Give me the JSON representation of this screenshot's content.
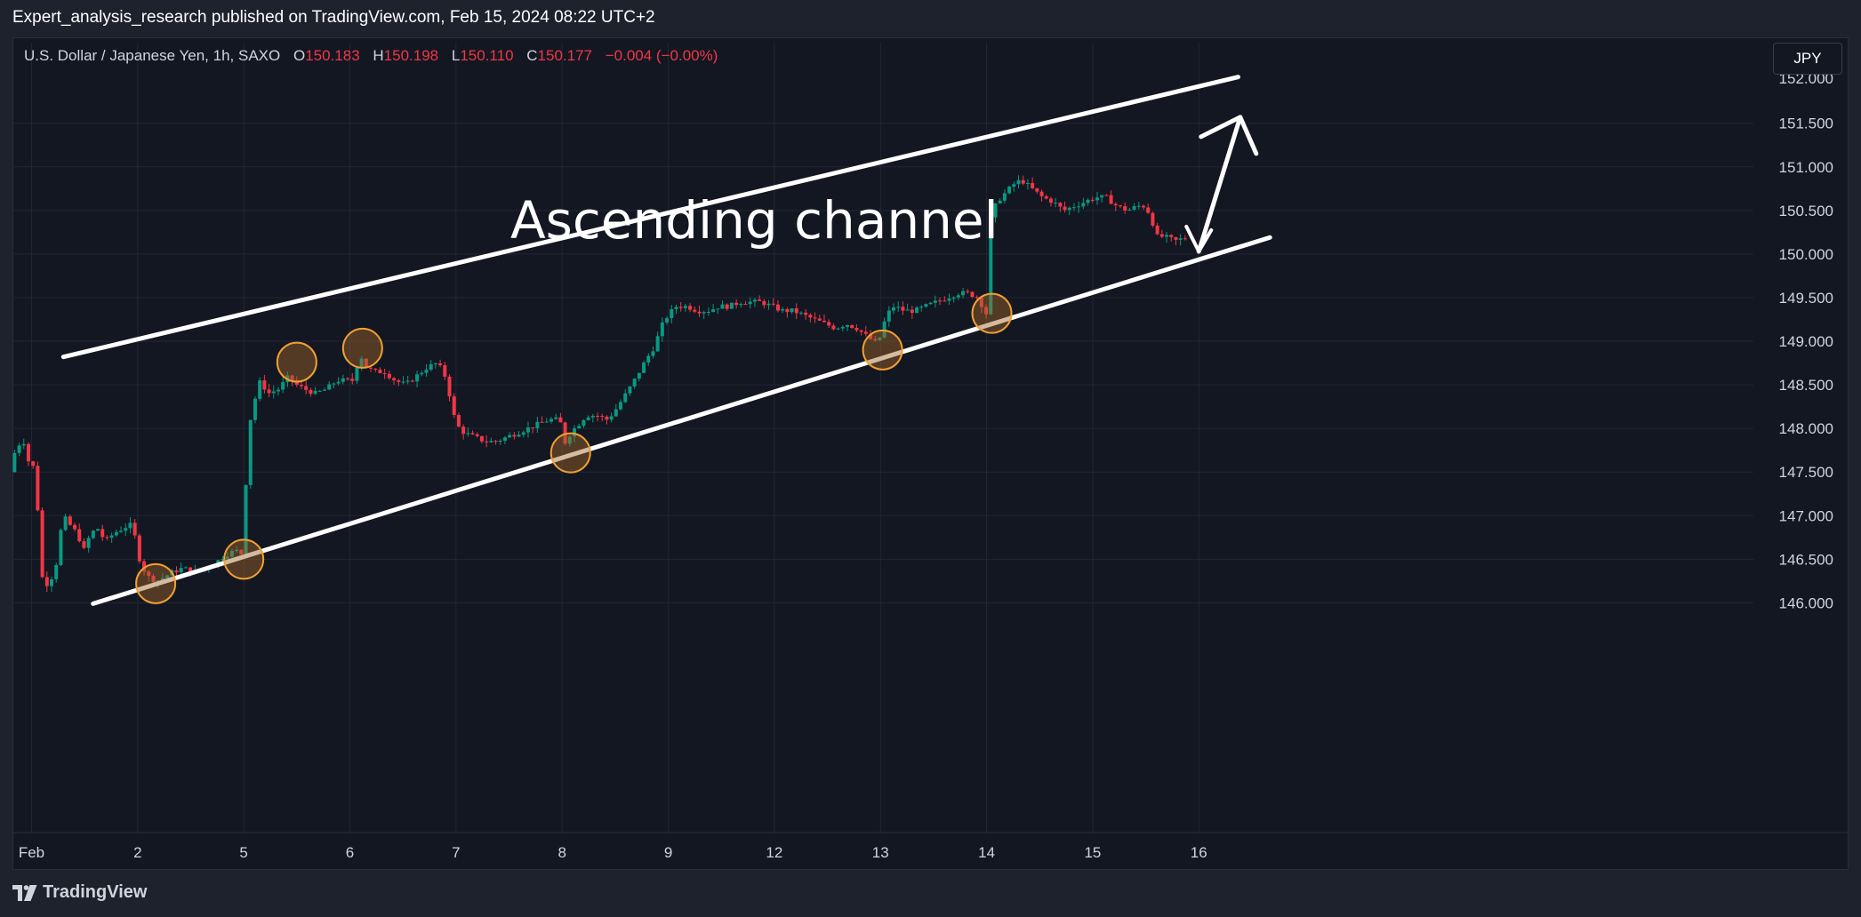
{
  "header": {
    "publish_line": "Expert_analysis_research published on TradingView.com, Feb 15, 2024 08:22 UTC+2"
  },
  "symbol": {
    "title": "U.S. Dollar / Japanese Yen, 1h, SAXO",
    "open_label": "O",
    "open": "150.183",
    "high_label": "H",
    "high": "150.198",
    "low_label": "L",
    "low": "150.110",
    "close_label": "C",
    "close": "150.177",
    "change": "−0.004 (−0.00%)"
  },
  "currency_button": "JPY",
  "footer": {
    "brand": "TradingView"
  },
  "colors": {
    "background": "#131722",
    "frame": "#1e222d",
    "grid": "#232632",
    "up": "#089981",
    "down": "#f23645",
    "annotation": "#ffffff",
    "highlight_fill": "#a0662a",
    "highlight_stroke": "#f0a030"
  },
  "chart_data": {
    "type": "candlestick",
    "title": "U.S. Dollar / Japanese Yen, 1h, SAXO",
    "annotation": "Ascending channel",
    "x_ticks": [
      "Feb",
      "2",
      "5",
      "6",
      "7",
      "8",
      "9",
      "12",
      "13",
      "14",
      "15",
      "16"
    ],
    "y_ticks": [
      "146.000",
      "146.500",
      "147.000",
      "147.500",
      "148.000",
      "148.500",
      "149.000",
      "149.500",
      "150.000",
      "150.500",
      "151.000",
      "151.500"
    ],
    "y_top_partial": "152.000",
    "ylim": [
      145.78,
      152.2
    ],
    "x_unit": "trading-day index (Feb 1 = 0)",
    "xlim": [
      -0.6,
      11.6
    ],
    "grid": true,
    "channel_upper": [
      [
        -0.12,
        148.82
      ],
      [
        10.95,
        152.03
      ]
    ],
    "channel_lower": [
      [
        0.16,
        145.99
      ],
      [
        11.25,
        150.19
      ]
    ],
    "projection_arrow": [
      [
        10.58,
        150.03
      ],
      [
        10.97,
        151.57
      ]
    ],
    "highlighted_points": [
      {
        "x": 0.75,
        "y": 146.22
      },
      {
        "x": 1.58,
        "y": 146.5
      },
      {
        "x": 2.08,
        "y": 148.76
      },
      {
        "x": 2.7,
        "y": 148.92
      },
      {
        "x": 4.66,
        "y": 147.72
      },
      {
        "x": 7.6,
        "y": 148.9
      },
      {
        "x": 8.63,
        "y": 149.32
      }
    ],
    "price_path": [
      [
        -0.58,
        147.5
      ],
      [
        -0.52,
        147.8
      ],
      [
        -0.45,
        147.85
      ],
      [
        -0.4,
        147.6
      ],
      [
        -0.35,
        147.55
      ],
      [
        -0.3,
        146.8
      ],
      [
        -0.28,
        146.3
      ],
      [
        -0.22,
        146.2
      ],
      [
        -0.15,
        146.4
      ],
      [
        -0.08,
        147.0
      ],
      [
        -0.02,
        146.9
      ],
      [
        0.05,
        146.8
      ],
      [
        0.12,
        146.6
      ],
      [
        0.18,
        146.8
      ],
      [
        0.25,
        146.85
      ],
      [
        0.32,
        146.7
      ],
      [
        0.4,
        146.8
      ],
      [
        0.48,
        146.85
      ],
      [
        0.55,
        146.9
      ],
      [
        0.6,
        146.75
      ],
      [
        0.65,
        146.45
      ],
      [
        0.72,
        146.3
      ],
      [
        0.8,
        146.25
      ],
      [
        0.88,
        146.3
      ],
      [
        0.95,
        146.35
      ],
      [
        1.05,
        146.4
      ],
      [
        1.15,
        146.35
      ],
      [
        1.25,
        146.4
      ],
      [
        1.35,
        146.45
      ],
      [
        1.45,
        146.55
      ],
      [
        1.55,
        146.6
      ],
      [
        1.62,
        146.55
      ],
      [
        1.66,
        147.95
      ],
      [
        1.72,
        148.3
      ],
      [
        1.78,
        148.55
      ],
      [
        1.85,
        148.4
      ],
      [
        1.95,
        148.45
      ],
      [
        2.05,
        148.6
      ],
      [
        2.12,
        148.5
      ],
      [
        2.2,
        148.45
      ],
      [
        2.3,
        148.4
      ],
      [
        2.4,
        148.45
      ],
      [
        2.5,
        148.55
      ],
      [
        2.6,
        148.55
      ],
      [
        2.65,
        148.55
      ],
      [
        2.72,
        148.85
      ],
      [
        2.78,
        148.7
      ],
      [
        2.85,
        148.65
      ],
      [
        2.95,
        148.65
      ],
      [
        3.05,
        148.55
      ],
      [
        3.15,
        148.5
      ],
      [
        3.25,
        148.6
      ],
      [
        3.35,
        148.7
      ],
      [
        3.45,
        148.75
      ],
      [
        3.52,
        148.6
      ],
      [
        3.58,
        148.3
      ],
      [
        3.62,
        148.05
      ],
      [
        3.7,
        147.95
      ],
      [
        3.8,
        147.9
      ],
      [
        3.9,
        147.85
      ],
      [
        4.0,
        147.85
      ],
      [
        4.1,
        147.9
      ],
      [
        4.2,
        147.95
      ],
      [
        4.3,
        148.0
      ],
      [
        4.4,
        148.05
      ],
      [
        4.5,
        148.1
      ],
      [
        4.6,
        148.1
      ],
      [
        4.66,
        147.8
      ],
      [
        4.7,
        147.95
      ],
      [
        4.78,
        148.05
      ],
      [
        4.85,
        148.15
      ],
      [
        4.95,
        148.15
      ],
      [
        5.05,
        148.1
      ],
      [
        5.12,
        148.2
      ],
      [
        5.2,
        148.35
      ],
      [
        5.28,
        148.5
      ],
      [
        5.35,
        148.65
      ],
      [
        5.42,
        148.8
      ],
      [
        5.5,
        148.95
      ],
      [
        5.55,
        149.15
      ],
      [
        5.62,
        149.3
      ],
      [
        5.7,
        149.4
      ],
      [
        5.8,
        149.4
      ],
      [
        5.9,
        149.35
      ],
      [
        6.0,
        149.35
      ],
      [
        6.1,
        149.4
      ],
      [
        6.2,
        149.4
      ],
      [
        6.3,
        149.45
      ],
      [
        6.4,
        149.45
      ],
      [
        6.5,
        149.45
      ],
      [
        6.6,
        149.4
      ],
      [
        6.7,
        149.35
      ],
      [
        6.8,
        149.35
      ],
      [
        6.9,
        149.3
      ],
      [
        7.0,
        149.25
      ],
      [
        7.1,
        149.2
      ],
      [
        7.2,
        149.15
      ],
      [
        7.3,
        149.2
      ],
      [
        7.4,
        149.15
      ],
      [
        7.5,
        149.05
      ],
      [
        7.58,
        148.98
      ],
      [
        7.62,
        149.05
      ],
      [
        7.68,
        149.3
      ],
      [
        7.75,
        149.4
      ],
      [
        7.85,
        149.35
      ],
      [
        7.95,
        149.35
      ],
      [
        8.05,
        149.4
      ],
      [
        8.15,
        149.45
      ],
      [
        8.25,
        149.5
      ],
      [
        8.35,
        149.55
      ],
      [
        8.45,
        149.55
      ],
      [
        8.55,
        149.5
      ],
      [
        8.6,
        149.35
      ],
      [
        8.63,
        149.3
      ],
      [
        8.65,
        150.35
      ],
      [
        8.72,
        150.6
      ],
      [
        8.8,
        150.7
      ],
      [
        8.88,
        150.8
      ],
      [
        8.95,
        150.85
      ],
      [
        9.05,
        150.75
      ],
      [
        9.15,
        150.65
      ],
      [
        9.25,
        150.6
      ],
      [
        9.35,
        150.5
      ],
      [
        9.45,
        150.55
      ],
      [
        9.55,
        150.6
      ],
      [
        9.65,
        150.65
      ],
      [
        9.75,
        150.65
      ],
      [
        9.85,
        150.55
      ],
      [
        9.95,
        150.5
      ],
      [
        10.05,
        150.55
      ],
      [
        10.12,
        150.55
      ],
      [
        10.18,
        150.4
      ],
      [
        10.22,
        150.2
      ],
      [
        10.3,
        150.2
      ],
      [
        10.4,
        150.15
      ],
      [
        10.48,
        150.18
      ]
    ]
  }
}
